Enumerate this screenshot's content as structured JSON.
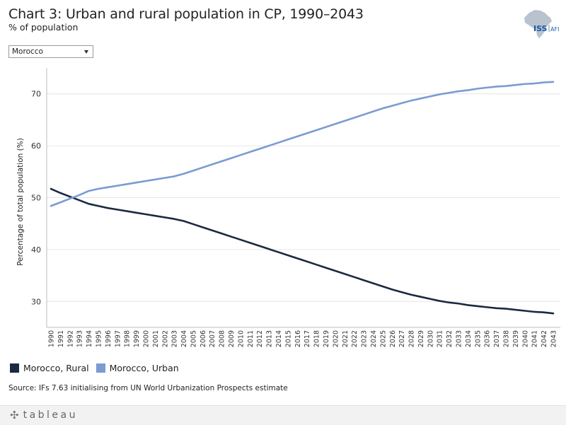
{
  "header": {
    "title": "Chart 3: Urban and rural population in CP, 1990–2043",
    "subtitle": "% of population"
  },
  "logo": {
    "text_iss": "ISS",
    "text_afi": "AFI"
  },
  "filter": {
    "selected": "Morocco"
  },
  "legend": [
    {
      "label": "Morocco, Rural",
      "color": "#1a2a40"
    },
    {
      "label": "Morocco, Urban",
      "color": "#7b9bd1"
    }
  ],
  "source": "Source: IFs 7.63 initialising from UN World Urbanization Prospects estimate",
  "footer": {
    "brand": "tableau"
  },
  "colors": {
    "rural": "#1a2a40",
    "urban": "#7b9bd1",
    "grid": "#e6e6e6",
    "axis": "#bdbdbd"
  },
  "chart_data": {
    "type": "line",
    "title": "Chart 3: Urban and rural population in CP, 1990–2043",
    "xlabel": "",
    "ylabel": "Percentage of total population (%)",
    "ylim": [
      25,
      75
    ],
    "yticks": [
      30,
      40,
      50,
      60,
      70
    ],
    "grid": true,
    "x": [
      1990,
      1991,
      1992,
      1993,
      1994,
      1995,
      1996,
      1997,
      1998,
      1999,
      2000,
      2001,
      2002,
      2003,
      2004,
      2005,
      2006,
      2007,
      2008,
      2009,
      2010,
      2011,
      2012,
      2013,
      2014,
      2015,
      2016,
      2017,
      2018,
      2019,
      2020,
      2021,
      2022,
      2023,
      2024,
      2025,
      2026,
      2027,
      2028,
      2029,
      2030,
      2031,
      2032,
      2033,
      2034,
      2035,
      2036,
      2037,
      2038,
      2039,
      2040,
      2041,
      2042,
      2043
    ],
    "series": [
      {
        "name": "Morocco, Rural",
        "color": "#1a2a40",
        "values": [
          51.7,
          50.9,
          50.2,
          49.5,
          48.8,
          48.4,
          48.0,
          47.7,
          47.4,
          47.1,
          46.8,
          46.5,
          46.2,
          45.9,
          45.5,
          44.9,
          44.3,
          43.7,
          43.1,
          42.5,
          41.9,
          41.3,
          40.7,
          40.1,
          39.5,
          38.9,
          38.3,
          37.7,
          37.1,
          36.5,
          35.9,
          35.3,
          34.7,
          34.1,
          33.5,
          32.9,
          32.3,
          31.8,
          31.3,
          30.9,
          30.5,
          30.1,
          29.8,
          29.6,
          29.3,
          29.1,
          28.9,
          28.7,
          28.6,
          28.4,
          28.2,
          28.0,
          27.9,
          27.7
        ]
      },
      {
        "name": "Morocco, Urban",
        "color": "#7b9bd1",
        "values": [
          48.4,
          49.1,
          49.8,
          50.5,
          51.3,
          51.7,
          52.0,
          52.3,
          52.6,
          52.9,
          53.2,
          53.5,
          53.8,
          54.1,
          54.6,
          55.2,
          55.8,
          56.4,
          57.0,
          57.6,
          58.2,
          58.8,
          59.4,
          60.0,
          60.6,
          61.2,
          61.8,
          62.4,
          63.0,
          63.6,
          64.2,
          64.8,
          65.4,
          66.0,
          66.6,
          67.2,
          67.7,
          68.2,
          68.7,
          69.1,
          69.5,
          69.9,
          70.2,
          70.5,
          70.7,
          71.0,
          71.2,
          71.4,
          71.5,
          71.7,
          71.9,
          72.0,
          72.2,
          72.3
        ]
      }
    ]
  }
}
